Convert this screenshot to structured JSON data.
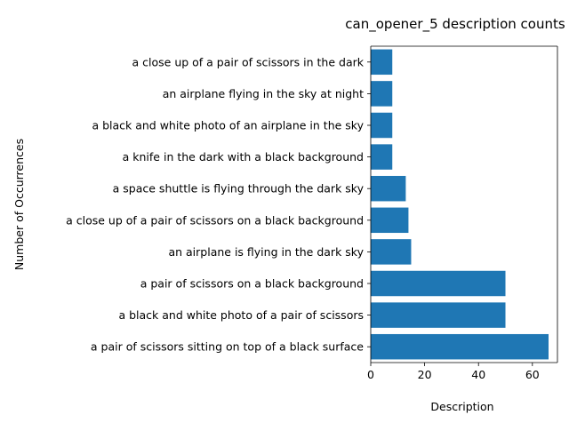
{
  "chart_data": {
    "type": "bar",
    "orientation": "horizontal",
    "title": "can_opener_5 description counts",
    "xlabel": "Description",
    "ylabel": "Number of Occurrences",
    "xlim": [
      0,
      69.3
    ],
    "xticks": [
      0,
      20,
      40,
      60
    ],
    "grid": false,
    "bar_color": "#1f77b4",
    "categories": [
      "a pair of scissors sitting on top of a black surface",
      "a black and white photo of a pair of scissors",
      "a pair of scissors on a black background",
      "an airplane is flying in the dark sky",
      "a close up of a pair of scissors on a black background",
      "a space shuttle is flying through the dark sky",
      "a knife in the dark with a black background",
      "a black and white photo of an airplane in the sky",
      "an airplane flying in the sky at night",
      "a close up of a pair of scissors in the dark"
    ],
    "values": [
      66,
      50,
      50,
      15,
      14,
      13,
      8,
      8,
      8,
      8
    ]
  }
}
